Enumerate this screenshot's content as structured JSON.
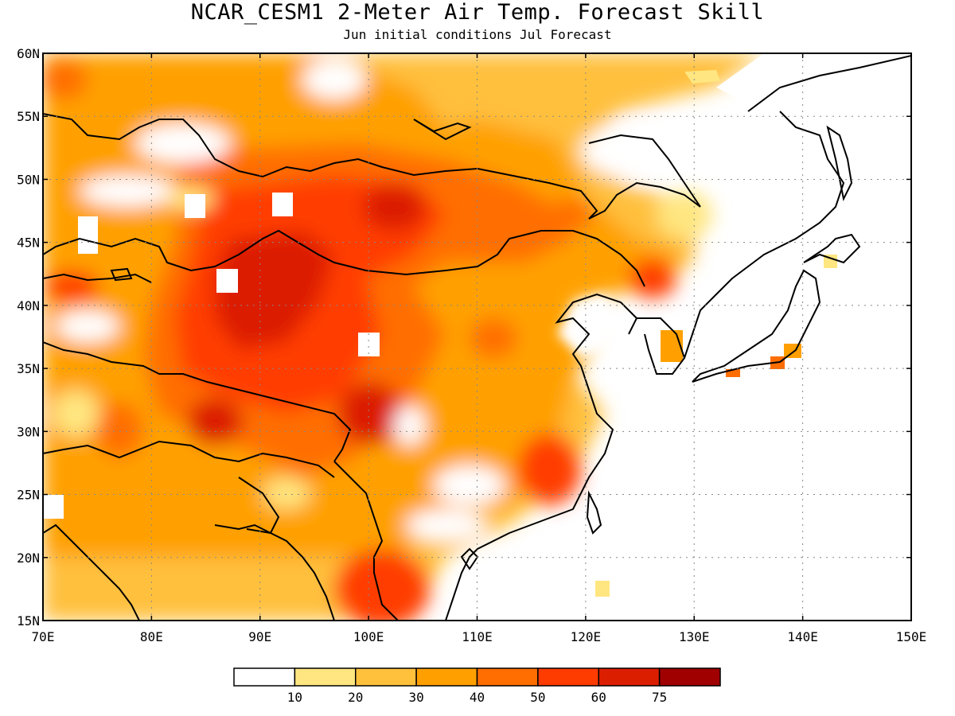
{
  "title": "NCAR_CESM1 2-Meter Air Temp. Forecast Skill",
  "subtitle": "Jun initial conditions  Jul Forecast",
  "map": {
    "lat_labels": [
      "60N",
      "55N",
      "50N",
      "45N",
      "40N",
      "35N",
      "30N",
      "25N",
      "20N",
      "15N"
    ],
    "lon_labels": [
      "70E",
      "80E",
      "90E",
      "100E",
      "110E",
      "120E",
      "130E",
      "140E",
      "150E"
    ],
    "extent": {
      "lon_min": 70,
      "lon_max": 150,
      "lat_min": 15,
      "lat_max": 60
    }
  },
  "colorbar": {
    "labels": [
      "10",
      "20",
      "30",
      "40",
      "50",
      "60",
      "75"
    ],
    "colors": [
      "#ffffff",
      "#ffe680",
      "#ffc03c",
      "#ffa000",
      "#ff6e00",
      "#ff3c00",
      "#dc1e00",
      "#a00000"
    ]
  }
}
